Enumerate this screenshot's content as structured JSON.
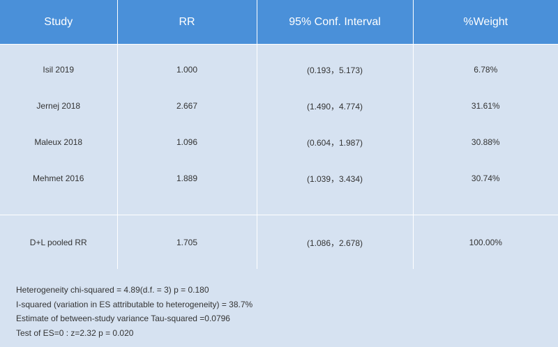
{
  "headers": [
    "Study",
    "RR",
    "95% Conf. Interval",
    "%Weight"
  ],
  "rows": [
    {
      "study": "Isil 2019",
      "rr": "1.000",
      "ci": "(0.193，5.173)",
      "weight": "6.78%"
    },
    {
      "study": "Jernej 2018",
      "rr": "2.667",
      "ci": "(1.490，4.774)",
      "weight": "31.61%"
    },
    {
      "study": "Maleux 2018",
      "rr": "1.096",
      "ci": "(0.604，1.987)",
      "weight": "30.88%"
    },
    {
      "study": "Mehmet 2016",
      "rr": "1.889",
      "ci": "(1.039，3.434)",
      "weight": "30.74%"
    }
  ],
  "pooled": {
    "study": "D+L pooled RR",
    "rr": "1.705",
    "ci": "(1.086，2.678)",
    "weight": "100.00%"
  },
  "footer": {
    "heterogeneity": "Heterogeneity chi-squared = 4.89(d.f. = 3) p = 0.180",
    "i_squared": "I-squared (variation in ES attributable to heterogeneity) = 38.7%",
    "tau_squared": "Estimate of between-study variance Tau-squared =0.0796",
    "test": "Test of ES=0 : z=2.32 p = 0.020"
  },
  "colors": {
    "header_bg": "#4a90d9",
    "body_bg": "#d6e2f1"
  }
}
